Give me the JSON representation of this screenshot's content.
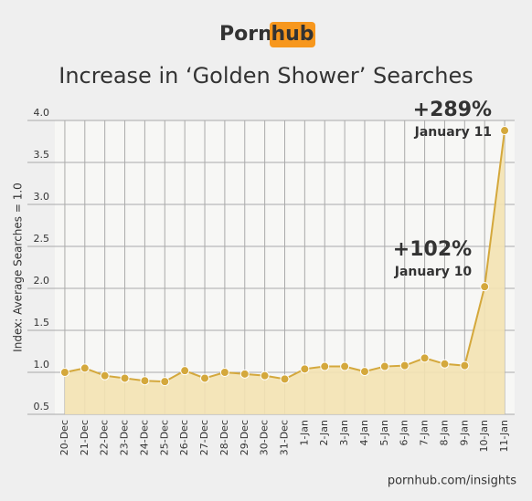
{
  "logo": {
    "left": "Porn",
    "right": "hub"
  },
  "footer": "pornhub.com/insights",
  "chart_data": {
    "type": "line",
    "title": "Increase in ‘Golden Shower’ Searches",
    "y_label": "Index: Average Searches = 1.0",
    "categories": [
      "20-Dec",
      "21-Dec",
      "22-Dec",
      "23-Dec",
      "24-Dec",
      "25-Dec",
      "26-Dec",
      "27-Dec",
      "28-Dec",
      "29-Dec",
      "30-Dec",
      "31-Dec",
      "1-Jan",
      "2-Jan",
      "3-Jan",
      "4-Jan",
      "5-Jan",
      "6-Jan",
      "7-Jan",
      "8-Jan",
      "9-Jan",
      "10-Jan",
      "11-Jan"
    ],
    "series": [
      {
        "name": "Golden Shower",
        "color": "#d4a83c",
        "values": [
          1.0,
          1.05,
          0.96,
          0.93,
          0.9,
          0.89,
          1.02,
          0.93,
          1.0,
          0.98,
          0.96,
          0.92,
          1.04,
          1.07,
          1.07,
          1.01,
          1.07,
          1.08,
          1.17,
          1.1,
          1.08,
          2.02,
          3.88
        ]
      }
    ],
    "ylim": [
      0.5,
      4.0
    ],
    "yticks": [
      0.5,
      {
        "value": 1,
        "label": "1.0"
      },
      1.5,
      {
        "value": 2,
        "label": "2.0"
      },
      2.5,
      {
        "value": 3,
        "label": "3.0"
      },
      3.5,
      {
        "value": 4,
        "label": "4.0"
      }
    ],
    "grid": true,
    "annotations": [
      {
        "index": 22,
        "label": "+289%",
        "date": "January 11"
      },
      {
        "index": 21,
        "label": "+102%",
        "date": "January 10"
      }
    ]
  }
}
